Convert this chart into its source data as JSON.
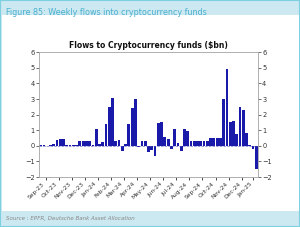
{
  "title": "Flows to Cryptocurrency funds ($bn)",
  "figure_title": "Figure 85: Weekly flows into cryptocurrency funds",
  "source": "Source : EPFR, Deutsche Bank Asset Allocation",
  "bar_color": "#1a1aaa",
  "line_color": "#5555bb",
  "bg_outer": "#cce8f0",
  "bg_inner": "#ffffff",
  "title_color": "#4ab0d0",
  "source_color": "#888888",
  "ylim": [
    -2.0,
    6.0
  ],
  "yticks": [
    -2.0,
    -1.0,
    0.0,
    1.0,
    2.0,
    3.0,
    4.0,
    5.0,
    6.0
  ],
  "month_labels": [
    "Sep-23",
    "Oct-23",
    "Nov-23",
    "Dec-23",
    "Jan-24",
    "Feb-24",
    "Mar-24",
    "Apr-24",
    "May-24",
    "Jun-24",
    "Jul-24",
    "Aug-24",
    "Sep-24",
    "Oct-24",
    "Nov-24",
    "Dec-24",
    "Jan-25"
  ],
  "weeks_per_month": [
    4,
    4,
    4,
    4,
    4,
    4,
    4,
    4,
    4,
    4,
    4,
    4,
    4,
    4,
    4,
    4,
    3
  ],
  "weekly_values": [
    0.05,
    0.03,
    0.02,
    0.03,
    0.1,
    0.38,
    0.42,
    0.43,
    0.05,
    0.05,
    0.05,
    0.04,
    0.28,
    0.28,
    0.32,
    0.28,
    0.05,
    1.08,
    0.12,
    0.22,
    1.38,
    2.48,
    3.08,
    0.28,
    0.38,
    -0.33,
    0.13,
    1.43,
    2.43,
    3.03,
    -0.08,
    0.33,
    0.28,
    -0.38,
    -0.28,
    -0.68,
    1.48,
    1.53,
    0.58,
    0.43,
    -0.23,
    1.08,
    0.18,
    -0.33,
    1.08,
    0.98,
    0.28,
    0.28,
    0.28,
    0.28,
    0.28,
    0.33,
    0.48,
    0.48,
    0.53,
    0.48,
    2.98,
    4.95,
    1.53,
    1.58,
    0.78,
    2.48,
    2.28,
    0.83,
    0.08,
    -0.18,
    -1.48
  ]
}
